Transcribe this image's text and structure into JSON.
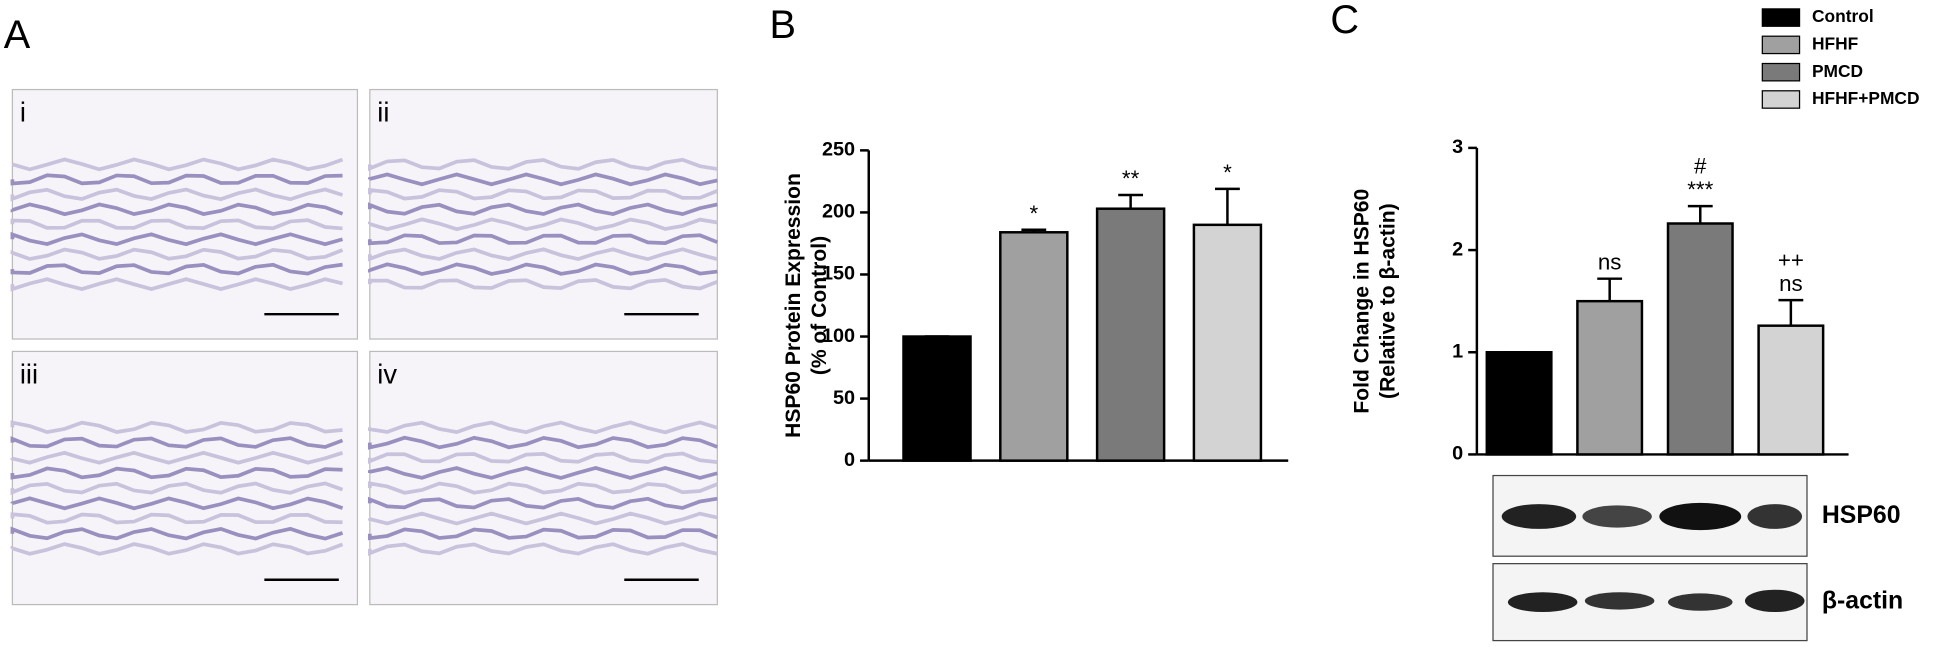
{
  "panels": [
    "A",
    "B",
    "C"
  ],
  "micrograph_labels": [
    "i",
    "ii",
    "iii",
    "iv"
  ],
  "blot_labels": [
    "HSP60",
    "β-actin"
  ],
  "chart_data": [
    {
      "type": "bar",
      "ylabel": [
        "HSP60 Protein Expression",
        "(% of Control)"
      ],
      "categories": [
        null,
        null,
        null,
        null
      ],
      "values": [
        100,
        184,
        203,
        190
      ],
      "errors": [
        0,
        2,
        11,
        29
      ],
      "colors": [
        "#000000",
        "#a0a0a0",
        "#7a7a7a",
        "#d3d3d3"
      ],
      "annotations": [
        [],
        [
          "*"
        ],
        [
          "**"
        ],
        [
          "*"
        ]
      ],
      "ylim": [
        0,
        250
      ],
      "yticks": [
        0,
        50,
        100,
        150,
        200,
        250
      ]
    },
    {
      "type": "bar",
      "ylabel": [
        "Fold Change in HSP60",
        "(Relative to β-actin)"
      ],
      "categories": [
        "Control",
        "HFHF",
        "PMCD",
        "HFHF+PMCD"
      ],
      "values": [
        1.0,
        1.5,
        2.26,
        1.26
      ],
      "errors": [
        0,
        0.22,
        0.17,
        0.25
      ],
      "colors": [
        "#000000",
        "#a0a0a0",
        "#7a7a7a",
        "#d3d3d3"
      ],
      "annotations": [
        [],
        [
          "ns"
        ],
        [
          "#",
          "***"
        ],
        [
          "++",
          "ns"
        ]
      ],
      "ylim": [
        0,
        3
      ],
      "yticks": [
        0,
        1,
        2,
        3
      ],
      "legend": "top-right"
    }
  ]
}
